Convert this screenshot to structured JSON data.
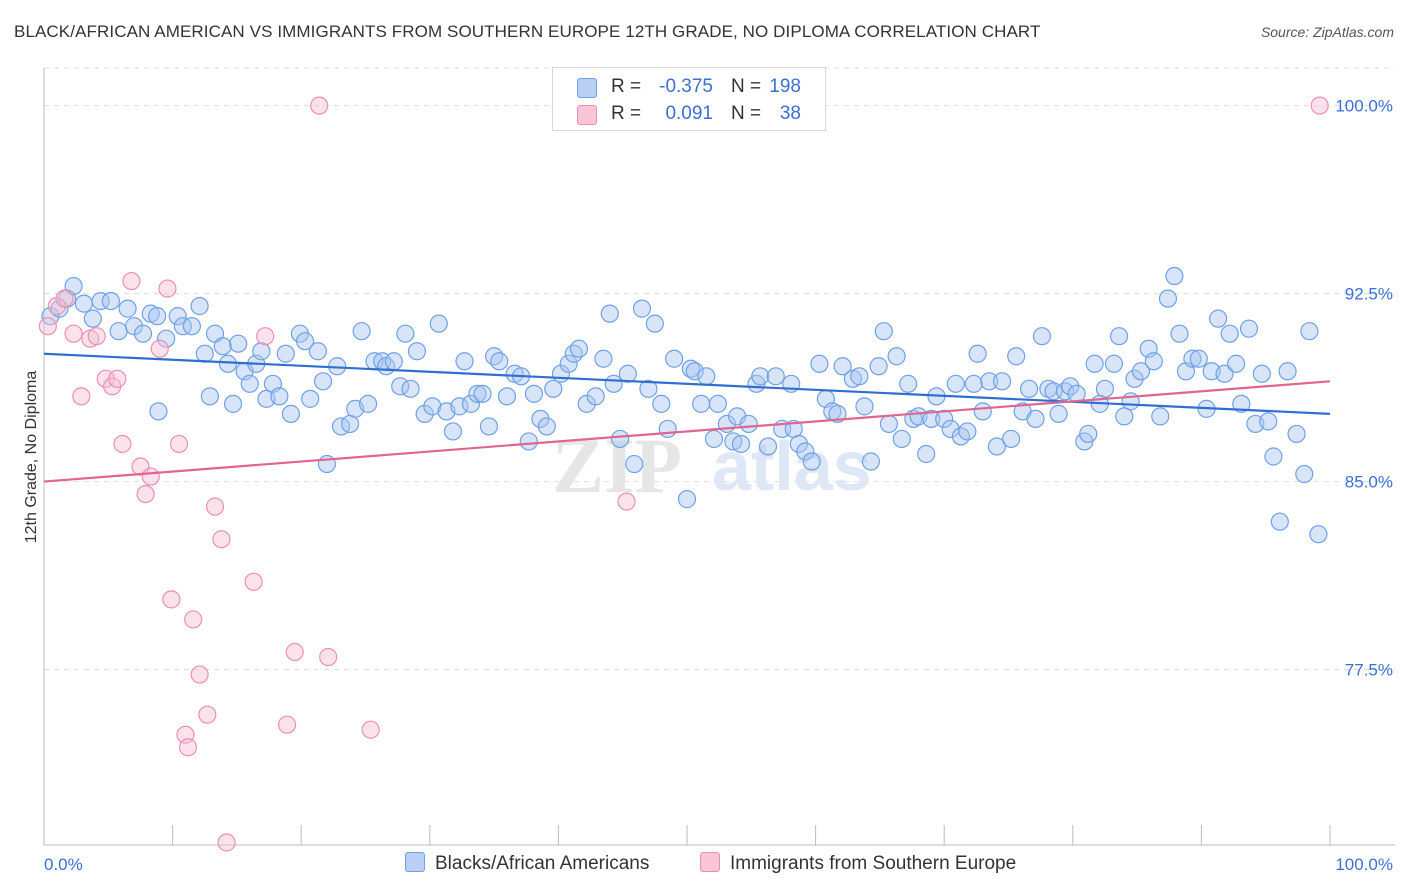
{
  "title": "BLACK/AFRICAN AMERICAN VS IMMIGRANTS FROM SOUTHERN EUROPE 12TH GRADE, NO DIPLOMA CORRELATION CHART",
  "source": "Source: ZipAtlas.com",
  "watermark": "ZIPatlas",
  "colors": {
    "blue": "#6fa0e8",
    "blue_fill": "#a9c6f2",
    "blue_line": "#2f6fd0",
    "pink": "#ec8fb0",
    "pink_fill": "#f6bfd2",
    "pink_line": "#e06592",
    "axis_label": "#3b6fd4",
    "grid": "#dddddd"
  },
  "legend": {
    "rows": [
      {
        "series": "Blacks/African Americans",
        "r_label": "R =",
        "r_value": "-0.375",
        "n_label": "N =",
        "n_value": "198"
      },
      {
        "series": "Immigrants from Southern Europe",
        "r_label": "R =",
        "r_value": "0.091",
        "n_label": "N =",
        "n_value": "38"
      }
    ]
  },
  "chart_data": {
    "type": "scatter",
    "title": "BLACK/AFRICAN AMERICAN VS IMMIGRANTS FROM SOUTHERN EUROPE 12TH GRADE, NO DIPLOMA CORRELATION CHART",
    "xlabel": "",
    "ylabel": "12th Grade, No Diploma",
    "xlim": [
      0,
      100
    ],
    "ylim": [
      70.5,
      101.5
    ],
    "x_tick_labels": [
      "0.0%",
      "100.0%"
    ],
    "y_ticks": [
      77.5,
      85.0,
      92.5,
      100.0
    ],
    "y_tick_labels": [
      "77.5%",
      "85.0%",
      "92.5%",
      "100.0%"
    ],
    "grid": "horizontal dashed",
    "legend_position": "top-center",
    "series": [
      {
        "name": "Blacks/African Americans",
        "color": "#6fa0e8",
        "trend": {
          "x": [
            0,
            100
          ],
          "y": [
            90.1,
            87.7
          ]
        },
        "points": [
          [
            0.5,
            91.6
          ],
          [
            1.2,
            91.9
          ],
          [
            1.8,
            92.3
          ],
          [
            2.3,
            92.8
          ],
          [
            3.1,
            92.1
          ],
          [
            3.8,
            91.5
          ],
          [
            4.4,
            92.2
          ],
          [
            5.2,
            92.2
          ],
          [
            5.8,
            91.0
          ],
          [
            6.5,
            91.9
          ],
          [
            7.0,
            91.2
          ],
          [
            7.7,
            90.9
          ],
          [
            8.3,
            91.7
          ],
          [
            8.8,
            91.6
          ],
          [
            8.9,
            87.8
          ],
          [
            9.5,
            90.7
          ],
          [
            10.4,
            91.6
          ],
          [
            10.8,
            91.2
          ],
          [
            11.5,
            91.2
          ],
          [
            12.1,
            92.0
          ],
          [
            12.5,
            90.1
          ],
          [
            12.9,
            88.4
          ],
          [
            13.3,
            90.9
          ],
          [
            13.9,
            90.4
          ],
          [
            14.3,
            89.7
          ],
          [
            14.7,
            88.1
          ],
          [
            15.1,
            90.5
          ],
          [
            15.6,
            89.4
          ],
          [
            16.0,
            88.9
          ],
          [
            16.5,
            89.7
          ],
          [
            16.9,
            90.2
          ],
          [
            17.3,
            88.3
          ],
          [
            17.8,
            88.9
          ],
          [
            18.3,
            88.4
          ],
          [
            18.8,
            90.1
          ],
          [
            19.2,
            87.7
          ],
          [
            19.9,
            90.9
          ],
          [
            20.3,
            90.6
          ],
          [
            20.7,
            88.3
          ],
          [
            21.3,
            90.2
          ],
          [
            21.7,
            89.0
          ],
          [
            22.0,
            85.7
          ],
          [
            22.8,
            89.6
          ],
          [
            23.1,
            87.2
          ],
          [
            23.8,
            87.3
          ],
          [
            24.2,
            87.9
          ],
          [
            24.7,
            91.0
          ],
          [
            25.2,
            88.1
          ],
          [
            25.7,
            89.8
          ],
          [
            26.3,
            89.8
          ],
          [
            26.6,
            89.6
          ],
          [
            27.2,
            89.8
          ],
          [
            27.7,
            88.8
          ],
          [
            28.1,
            90.9
          ],
          [
            28.5,
            88.7
          ],
          [
            29.0,
            90.2
          ],
          [
            29.6,
            87.7
          ],
          [
            30.2,
            88.0
          ],
          [
            30.7,
            91.3
          ],
          [
            31.3,
            87.8
          ],
          [
            31.8,
            87.0
          ],
          [
            32.3,
            88.0
          ],
          [
            32.7,
            89.8
          ],
          [
            33.2,
            88.1
          ],
          [
            33.7,
            88.5
          ],
          [
            34.1,
            88.5
          ],
          [
            34.6,
            87.2
          ],
          [
            35.0,
            90.0
          ],
          [
            35.4,
            89.8
          ],
          [
            36.0,
            88.4
          ],
          [
            36.6,
            89.3
          ],
          [
            37.1,
            89.2
          ],
          [
            37.7,
            86.6
          ],
          [
            38.1,
            88.5
          ],
          [
            38.6,
            87.5
          ],
          [
            39.1,
            87.2
          ],
          [
            39.6,
            88.7
          ],
          [
            40.2,
            89.3
          ],
          [
            40.8,
            89.7
          ],
          [
            41.2,
            90.1
          ],
          [
            41.6,
            90.3
          ],
          [
            42.2,
            88.1
          ],
          [
            42.9,
            88.4
          ],
          [
            43.5,
            89.9
          ],
          [
            44.0,
            91.7
          ],
          [
            44.3,
            88.9
          ],
          [
            44.8,
            86.7
          ],
          [
            45.4,
            89.3
          ],
          [
            45.9,
            85.7
          ],
          [
            46.5,
            91.9
          ],
          [
            47.0,
            88.7
          ],
          [
            47.5,
            91.3
          ],
          [
            48.0,
            88.1
          ],
          [
            48.5,
            87.1
          ],
          [
            49.0,
            89.9
          ],
          [
            50.0,
            84.3
          ],
          [
            50.3,
            89.5
          ],
          [
            50.6,
            89.4
          ],
          [
            51.1,
            88.1
          ],
          [
            51.5,
            89.2
          ],
          [
            52.1,
            86.7
          ],
          [
            52.4,
            88.1
          ],
          [
            53.1,
            87.3
          ],
          [
            53.6,
            86.6
          ],
          [
            53.9,
            87.6
          ],
          [
            54.2,
            86.5
          ],
          [
            54.8,
            87.3
          ],
          [
            55.4,
            88.9
          ],
          [
            55.7,
            89.2
          ],
          [
            56.3,
            86.4
          ],
          [
            56.9,
            89.2
          ],
          [
            57.4,
            87.1
          ],
          [
            58.1,
            88.9
          ],
          [
            58.3,
            87.1
          ],
          [
            58.7,
            86.5
          ],
          [
            59.2,
            86.2
          ],
          [
            59.7,
            85.8
          ],
          [
            60.3,
            89.7
          ],
          [
            60.8,
            88.3
          ],
          [
            61.3,
            87.8
          ],
          [
            61.7,
            87.7
          ],
          [
            62.1,
            89.6
          ],
          [
            62.9,
            89.1
          ],
          [
            63.4,
            89.2
          ],
          [
            63.8,
            88.0
          ],
          [
            64.3,
            85.8
          ],
          [
            64.9,
            89.6
          ],
          [
            65.3,
            91.0
          ],
          [
            65.7,
            87.3
          ],
          [
            66.3,
            90.0
          ],
          [
            66.7,
            86.7
          ],
          [
            67.2,
            88.9
          ],
          [
            67.6,
            87.5
          ],
          [
            68.0,
            87.6
          ],
          [
            68.6,
            86.1
          ],
          [
            69.0,
            87.5
          ],
          [
            69.4,
            88.4
          ],
          [
            70.0,
            87.5
          ],
          [
            70.5,
            87.1
          ],
          [
            70.9,
            88.9
          ],
          [
            71.3,
            86.8
          ],
          [
            71.8,
            87.0
          ],
          [
            72.3,
            88.9
          ],
          [
            72.6,
            90.1
          ],
          [
            73.0,
            87.8
          ],
          [
            73.5,
            89.0
          ],
          [
            74.1,
            86.4
          ],
          [
            74.5,
            89.0
          ],
          [
            75.2,
            86.7
          ],
          [
            75.6,
            90.0
          ],
          [
            76.1,
            87.8
          ],
          [
            76.6,
            88.7
          ],
          [
            77.1,
            87.5
          ],
          [
            77.6,
            90.8
          ],
          [
            78.1,
            88.7
          ],
          [
            78.5,
            88.6
          ],
          [
            78.9,
            87.7
          ],
          [
            79.4,
            88.6
          ],
          [
            79.8,
            88.8
          ],
          [
            80.3,
            88.5
          ],
          [
            80.9,
            86.6
          ],
          [
            81.2,
            86.9
          ],
          [
            81.7,
            89.7
          ],
          [
            82.1,
            88.1
          ],
          [
            82.5,
            88.7
          ],
          [
            83.2,
            89.7
          ],
          [
            83.6,
            90.8
          ],
          [
            84.0,
            87.6
          ],
          [
            84.5,
            88.2
          ],
          [
            84.8,
            89.1
          ],
          [
            85.3,
            89.4
          ],
          [
            85.9,
            90.3
          ],
          [
            86.3,
            89.8
          ],
          [
            86.8,
            87.6
          ],
          [
            87.4,
            92.3
          ],
          [
            87.9,
            93.2
          ],
          [
            88.3,
            90.9
          ],
          [
            88.8,
            89.4
          ],
          [
            89.3,
            89.9
          ],
          [
            89.8,
            89.9
          ],
          [
            90.4,
            87.9
          ],
          [
            90.8,
            89.4
          ],
          [
            91.3,
            91.5
          ],
          [
            91.8,
            89.3
          ],
          [
            92.2,
            90.9
          ],
          [
            92.7,
            89.7
          ],
          [
            93.1,
            88.1
          ],
          [
            93.7,
            91.1
          ],
          [
            94.2,
            87.3
          ],
          [
            94.7,
            89.3
          ],
          [
            95.2,
            87.4
          ],
          [
            95.6,
            86.0
          ],
          [
            96.1,
            83.4
          ],
          [
            96.7,
            89.4
          ],
          [
            97.4,
            86.9
          ],
          [
            98.0,
            85.3
          ],
          [
            98.4,
            91.0
          ],
          [
            99.1,
            82.9
          ]
        ]
      },
      {
        "name": "Immigrants from Southern Europe",
        "color": "#ec8fb0",
        "trend": {
          "x": [
            0,
            100
          ],
          "y": [
            85.0,
            89.0
          ]
        },
        "points": [
          [
            0.3,
            91.2
          ],
          [
            1.0,
            92.0
          ],
          [
            1.6,
            92.3
          ],
          [
            2.3,
            90.9
          ],
          [
            2.9,
            88.4
          ],
          [
            3.6,
            90.7
          ],
          [
            4.1,
            90.8
          ],
          [
            4.8,
            89.1
          ],
          [
            5.3,
            88.8
          ],
          [
            5.7,
            89.1
          ],
          [
            6.1,
            86.5
          ],
          [
            6.8,
            93.0
          ],
          [
            7.5,
            85.6
          ],
          [
            7.9,
            84.5
          ],
          [
            8.3,
            85.2
          ],
          [
            9.0,
            90.3
          ],
          [
            9.6,
            92.7
          ],
          [
            9.9,
            80.3
          ],
          [
            10.5,
            86.5
          ],
          [
            11.0,
            74.9
          ],
          [
            11.2,
            74.4
          ],
          [
            11.6,
            79.5
          ],
          [
            12.1,
            77.3
          ],
          [
            12.7,
            75.7
          ],
          [
            13.3,
            84.0
          ],
          [
            13.8,
            82.7
          ],
          [
            14.2,
            70.6
          ],
          [
            16.3,
            81.0
          ],
          [
            17.2,
            90.8
          ],
          [
            18.9,
            75.3
          ],
          [
            19.5,
            78.2
          ],
          [
            21.4,
            100.0
          ],
          [
            22.1,
            78.0
          ],
          [
            25.4,
            75.1
          ],
          [
            45.3,
            84.2
          ],
          [
            99.2,
            100.0
          ]
        ]
      }
    ]
  }
}
